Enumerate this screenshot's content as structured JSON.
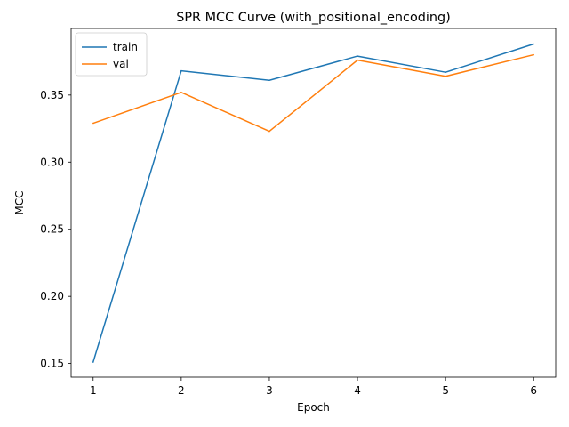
{
  "chart_data": {
    "type": "line",
    "title": "SPR MCC Curve (with_positional_encoding)",
    "xlabel": "Epoch",
    "ylabel": "MCC",
    "x": [
      1,
      2,
      3,
      4,
      5,
      6
    ],
    "xlim": [
      0.75,
      6.25
    ],
    "ylim": [
      0.1398,
      0.3996
    ],
    "xticks": [
      1,
      2,
      3,
      4,
      5,
      6
    ],
    "xtick_labels": [
      "1",
      "2",
      "3",
      "4",
      "5",
      "6"
    ],
    "yticks": [
      0.15,
      0.2,
      0.25,
      0.3,
      0.35
    ],
    "ytick_labels": [
      "0.15",
      "0.20",
      "0.25",
      "0.30",
      "0.35"
    ],
    "grid": false,
    "legend_position": "top-left",
    "series": [
      {
        "name": "train",
        "color": "#1f77b4",
        "values": [
          0.151,
          0.368,
          0.361,
          0.379,
          0.367,
          0.388
        ]
      },
      {
        "name": "val",
        "color": "#ff7f0e",
        "values": [
          0.329,
          0.352,
          0.323,
          0.376,
          0.364,
          0.38
        ]
      }
    ]
  }
}
